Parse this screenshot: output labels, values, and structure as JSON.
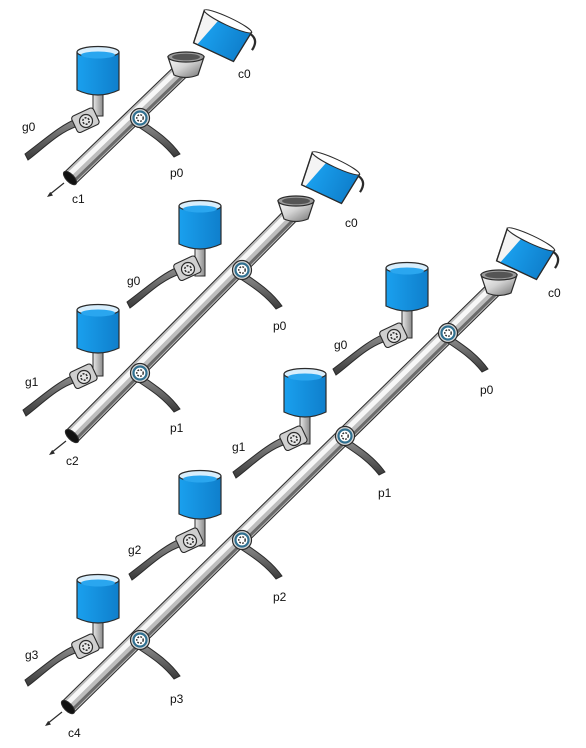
{
  "diagram": {
    "colors": {
      "water": "#1e9ae8",
      "pipe_light": "#f2f2f2",
      "pipe_mid": "#bdbdbd",
      "pipe_dark": "#6b6b6b",
      "handle": "#4a4a4a",
      "outline": "#2b2b2b",
      "valve_ring": "#2f6f8f"
    },
    "assemblies": [
      {
        "id": "one-stage",
        "cup_label": "c0",
        "outlet_label": "c1",
        "stages": [
          {
            "gate_label": "g0",
            "pipe_valve_label": "p0"
          }
        ]
      },
      {
        "id": "two-stage",
        "cup_label": "c0",
        "outlet_label": "c2",
        "stages": [
          {
            "gate_label": "g0",
            "pipe_valve_label": "p0"
          },
          {
            "gate_label": "g1",
            "pipe_valve_label": "p1"
          }
        ]
      },
      {
        "id": "four-stage",
        "cup_label": "c0",
        "outlet_label": "c4",
        "stages": [
          {
            "gate_label": "g0",
            "pipe_valve_label": "p0"
          },
          {
            "gate_label": "g1",
            "pipe_valve_label": "p1"
          },
          {
            "gate_label": "g2",
            "pipe_valve_label": "p2"
          },
          {
            "gate_label": "g3",
            "pipe_valve_label": "p3"
          }
        ]
      }
    ]
  }
}
